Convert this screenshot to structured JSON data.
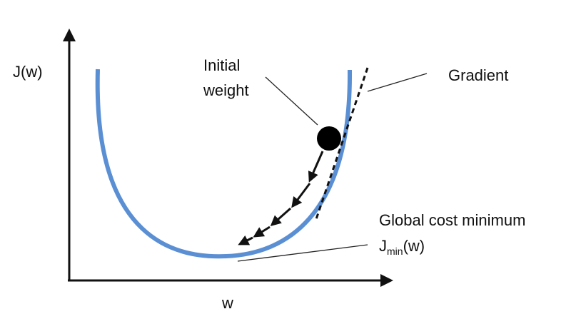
{
  "labels": {
    "y_axis": "J(w)",
    "x_axis": "w",
    "initial_weight_line1": "Initial",
    "initial_weight_line2": "weight",
    "gradient": "Gradient",
    "global_min_line1": "Global cost minimum",
    "jmin_base": "J",
    "jmin_sub": "min",
    "jmin_tail": "(w)"
  },
  "colors": {
    "curve": "#5b8fd4",
    "ink": "#111111",
    "leader": "#222222",
    "background": "#ffffff"
  }
}
